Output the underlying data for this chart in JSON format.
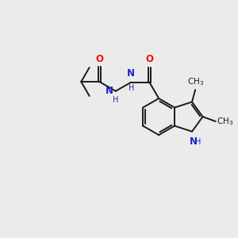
{
  "bg_color": "#ebebeb",
  "bond_color": "#1a1a1a",
  "o_color": "#ee1111",
  "n_color": "#2222cc",
  "font_size": 8.5,
  "small_font_size": 7.5,
  "line_width": 1.4,
  "figsize": [
    3.0,
    3.0
  ],
  "dpi": 100,
  "xlim": [
    0,
    10
  ],
  "ylim": [
    0,
    10
  ]
}
